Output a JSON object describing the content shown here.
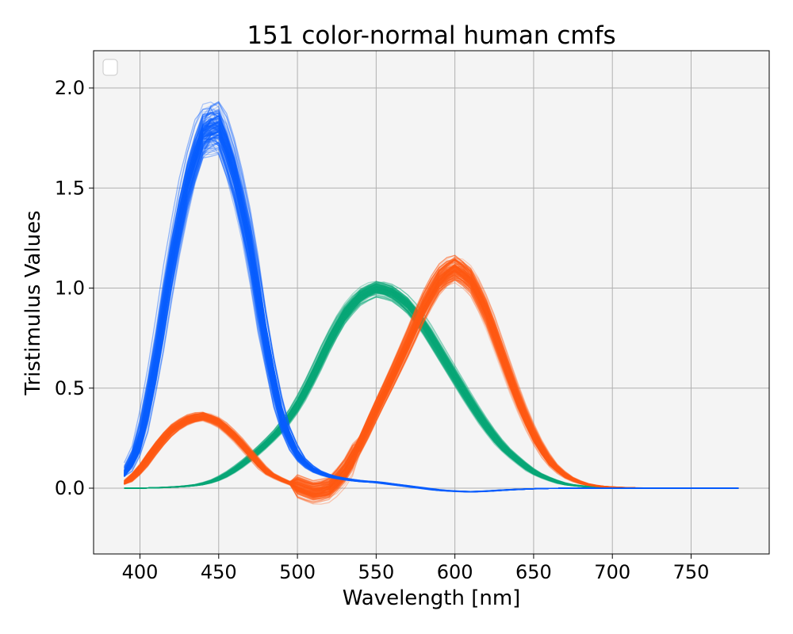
{
  "chart_data": {
    "type": "line",
    "title": "151 color-normal human cmfs",
    "xlabel": "Wavelength [nm]",
    "ylabel": "Tristimulus Values",
    "xlim": [
      370,
      1000
    ],
    "ylim": [
      -0.33,
      2.2
    ],
    "x_ticks": [
      400,
      450,
      500,
      550,
      600,
      650,
      700,
      750
    ],
    "x_tick_labels": [
      "400",
      "450",
      "500",
      "550",
      "600",
      "650",
      "700",
      "750"
    ],
    "y_ticks": [
      0.0,
      0.5,
      1.0,
      1.5,
      2.0
    ],
    "y_tick_labels": [
      "0.0",
      "0.5",
      "1.0",
      "1.5",
      "2.0"
    ],
    "grid": true,
    "legend": {
      "placement": "upper-left",
      "entries": []
    },
    "observer_count": 151,
    "x": [
      390,
      400,
      410,
      420,
      430,
      440,
      450,
      460,
      470,
      480,
      490,
      500,
      510,
      520,
      530,
      540,
      550,
      560,
      570,
      580,
      590,
      600,
      610,
      620,
      630,
      640,
      650,
      660,
      670,
      680,
      690,
      700,
      710,
      720,
      730,
      740,
      750,
      760,
      770,
      780
    ],
    "series": [
      {
        "color": "#0a5fff",
        "values": [
          0.06,
          0.22,
          0.62,
          1.12,
          1.52,
          1.78,
          1.82,
          1.58,
          1.22,
          0.72,
          0.34,
          0.16,
          0.09,
          0.06,
          0.045,
          0.035,
          0.03,
          0.02,
          0.01,
          0.0,
          -0.01,
          -0.015,
          -0.018,
          -0.015,
          -0.01,
          -0.006,
          -0.003,
          -0.001,
          0.0,
          0.0,
          0.0,
          0.0,
          0.0,
          0.0,
          0.0,
          0.0,
          0.0,
          0.0,
          0.0,
          0.0
        ]
      },
      {
        "color": "#0aa878",
        "values": [
          0.0,
          0.0,
          0.002,
          0.005,
          0.01,
          0.02,
          0.045,
          0.09,
          0.15,
          0.22,
          0.3,
          0.41,
          0.56,
          0.73,
          0.87,
          0.96,
          1.0,
          0.98,
          0.92,
          0.82,
          0.69,
          0.56,
          0.43,
          0.31,
          0.21,
          0.14,
          0.08,
          0.045,
          0.02,
          0.01,
          0.005,
          0.002,
          0.001,
          0.0,
          0.0,
          0.0,
          0.0,
          0.0,
          0.0,
          0.0
        ]
      },
      {
        "color": "#ff5a14",
        "values": [
          0.02,
          0.09,
          0.2,
          0.29,
          0.34,
          0.36,
          0.33,
          0.26,
          0.17,
          0.08,
          0.04,
          0.01,
          -0.02,
          -0.005,
          0.08,
          0.22,
          0.39,
          0.55,
          0.72,
          0.9,
          1.04,
          1.1,
          1.04,
          0.88,
          0.66,
          0.44,
          0.26,
          0.13,
          0.06,
          0.025,
          0.01,
          0.005,
          0.002,
          0.001,
          0.0,
          0.0,
          0.0,
          0.0,
          0.0,
          0.0
        ]
      }
    ]
  }
}
